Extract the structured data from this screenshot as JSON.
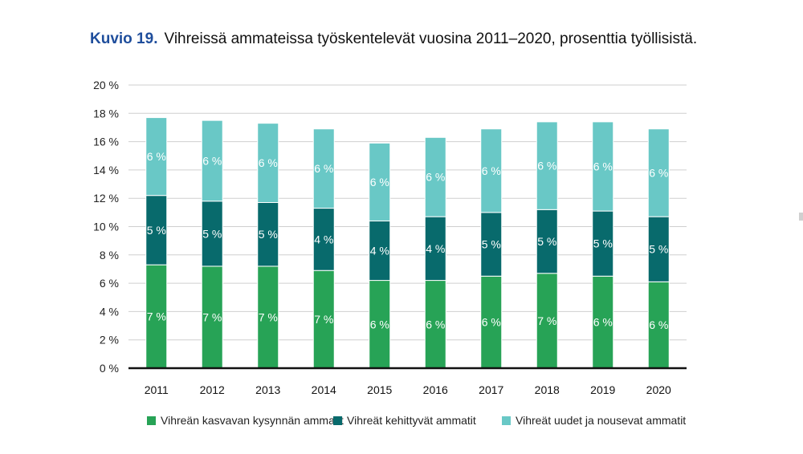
{
  "figure": {
    "label": "Kuvio 19.",
    "title": "Vihreissä ammateissa työskentelevät vuosina 2011–2020, prosenttia työllisistä."
  },
  "chart_data": {
    "type": "bar",
    "stacked": true,
    "title": "Vihreissä ammateissa työskentelevät vuosina 2011–2020, prosenttia työllisistä.",
    "xlabel": "",
    "ylabel": "",
    "ylim": [
      0,
      20
    ],
    "yticks": [
      0,
      2,
      4,
      6,
      8,
      10,
      12,
      14,
      16,
      18,
      20
    ],
    "ytick_labels": [
      "0 %",
      "2 %",
      "4 %",
      "6 %",
      "8 %",
      "10 %",
      "12 %",
      "14 %",
      "16 %",
      "18 %",
      "20 %"
    ],
    "grid": true,
    "legend_position": "bottom",
    "categories": [
      "2011",
      "2012",
      "2013",
      "2014",
      "2015",
      "2016",
      "2017",
      "2018",
      "2019",
      "2020"
    ],
    "series": [
      {
        "name": "Vihreän kasvavan kysynnän ammatit",
        "color": "#27a356",
        "values": [
          7.3,
          7.2,
          7.2,
          6.9,
          6.2,
          6.2,
          6.5,
          6.7,
          6.5,
          6.1
        ],
        "labels": [
          "7 %",
          "7 %",
          "7 %",
          "7 %",
          "6 %",
          "6 %",
          "6 %",
          "7 %",
          "6 %",
          "6 %"
        ]
      },
      {
        "name": "Vihreät kehittyvät ammatit",
        "color": "#086a6c",
        "values": [
          4.9,
          4.6,
          4.5,
          4.4,
          4.2,
          4.5,
          4.5,
          4.5,
          4.6,
          4.6
        ],
        "labels": [
          "5 %",
          "5 %",
          "5 %",
          "4 %",
          "4 %",
          "4 %",
          "5 %",
          "5 %",
          "5 %",
          "5 %"
        ]
      },
      {
        "name": "Vihreät uudet ja nousevat ammatit",
        "color": "#69c8c6",
        "values": [
          5.5,
          5.7,
          5.6,
          5.6,
          5.5,
          5.6,
          5.9,
          6.2,
          6.3,
          6.2
        ],
        "labels": [
          "6 %",
          "6 %",
          "6 %",
          "6 %",
          "6 %",
          "6 %",
          "6 %",
          "6 %",
          "6 %",
          "6 %"
        ]
      }
    ]
  }
}
